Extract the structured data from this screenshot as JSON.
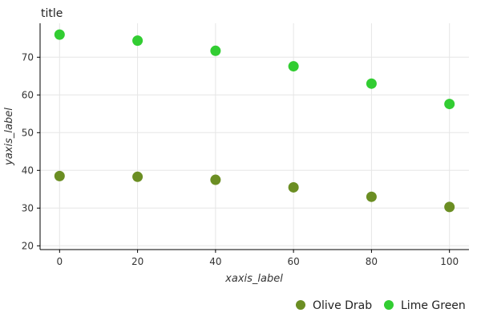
{
  "chart_data": {
    "type": "scatter",
    "title": "title",
    "xlabel": "xaxis_label",
    "ylabel": "yaxis_label",
    "xlim": [
      -5,
      105
    ],
    "ylim": [
      19,
      79
    ],
    "x_ticks": [
      0,
      20,
      40,
      60,
      80,
      100
    ],
    "y_ticks": [
      20,
      30,
      40,
      50,
      60,
      70
    ],
    "grid": true,
    "legend_position": "bottom",
    "series": [
      {
        "name": "Olive Drab",
        "color": "#6b8e23",
        "x": [
          0,
          20,
          40,
          60,
          80,
          100
        ],
        "y": [
          38.5,
          38.3,
          37.5,
          35.5,
          33.0,
          30.3
        ]
      },
      {
        "name": "Lime Green",
        "color": "#32cd32",
        "x": [
          0,
          20,
          40,
          60,
          80,
          100
        ],
        "y": [
          76,
          74.4,
          71.7,
          67.6,
          63.0,
          57.6
        ]
      }
    ]
  }
}
